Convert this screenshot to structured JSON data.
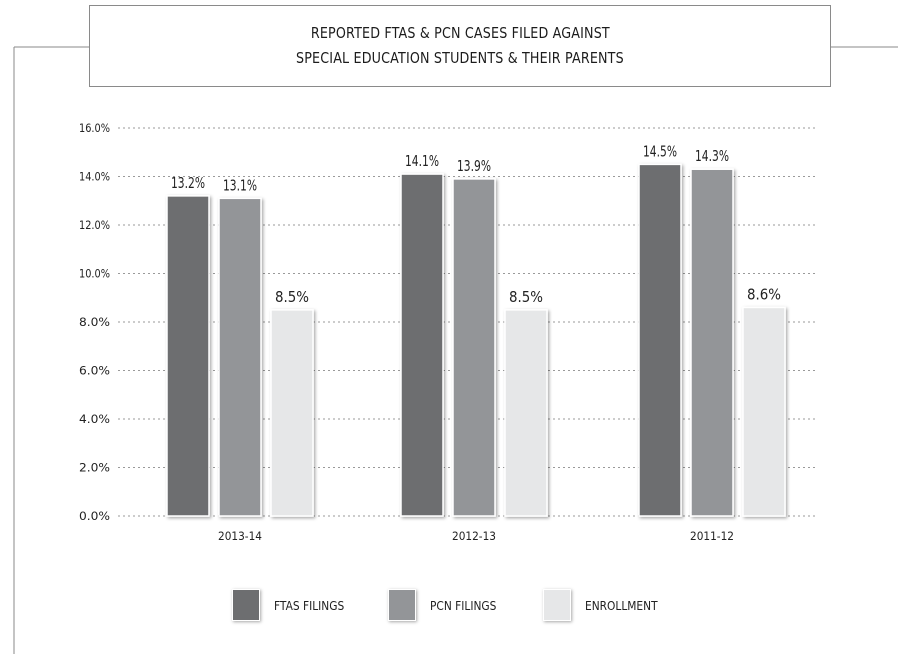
{
  "title": {
    "line1": "REPORTED FTAS & PCN CASES FILED AGAINST",
    "line2": "SPECIAL EDUCATION STUDENTS & THEIR PARENTS"
  },
  "colors": {
    "ftas": "#6d6e70",
    "pcn": "#939598",
    "enrollment": "#e6e7e8",
    "grid": "#9a9a9a",
    "frame": "#8a8a8a"
  },
  "chart_data": {
    "type": "bar",
    "title": "REPORTED FTAS & PCN CASES FILED AGAINST SPECIAL EDUCATION STUDENTS & THEIR PARENTS",
    "categories": [
      "2013-14",
      "2012-13",
      "2011-12"
    ],
    "series": [
      {
        "name": "FTAS FILINGS",
        "values": [
          13.2,
          14.1,
          14.5
        ],
        "labels": [
          "13.2%",
          "14.1%",
          "14.5%"
        ]
      },
      {
        "name": "PCN FILINGS",
        "values": [
          13.1,
          13.9,
          14.3
        ],
        "labels": [
          "13.1%",
          "13.9%",
          "14.3%"
        ]
      },
      {
        "name": "ENROLLMENT",
        "values": [
          8.5,
          8.5,
          8.6
        ],
        "labels": [
          "8.5%",
          "8.5%",
          "8.6%"
        ]
      }
    ],
    "ylim": [
      0,
      16
    ],
    "yticks": [
      0,
      2,
      4,
      6,
      8,
      10,
      12,
      14,
      16
    ],
    "ytick_labels": [
      "0.0%",
      "2.0%",
      "4.0%",
      "6.0%",
      "8.0%",
      "10.0%",
      "12.0%",
      "14.0%",
      "16.0%"
    ],
    "grid": true,
    "legend_position": "bottom"
  }
}
